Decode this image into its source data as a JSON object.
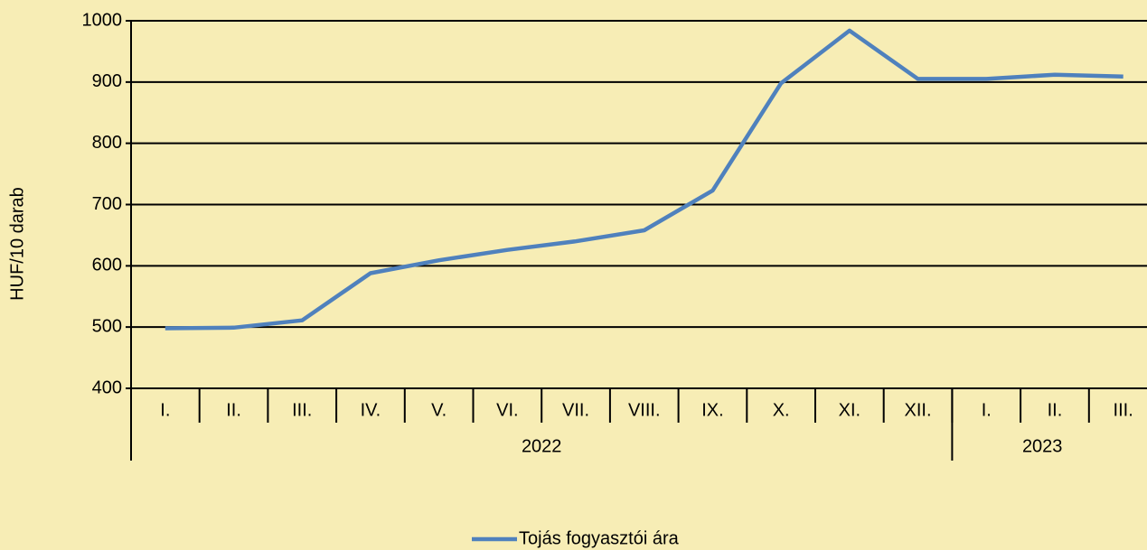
{
  "chart_data": {
    "type": "line",
    "y_label": "HUF/10 darab",
    "categories": [
      "I.",
      "II.",
      "III.",
      "IV.",
      "V.",
      "VI.",
      "VII.",
      "VIII.",
      "IX.",
      "X.",
      "XI.",
      "XII.",
      "I.",
      "II.",
      "III."
    ],
    "category_years": [
      "2022",
      "2022",
      "2022",
      "2022",
      "2022",
      "2022",
      "2022",
      "2022",
      "2022",
      "2022",
      "2022",
      "2022",
      "2023",
      "2023",
      "2023"
    ],
    "series": [
      {
        "name": "Tojás fogyasztói ára",
        "color": "#4f81bd",
        "values": [
          498,
          499,
          511,
          588,
          609,
          626,
          640,
          658,
          723,
          898,
          984,
          905,
          905,
          912,
          909
        ]
      }
    ],
    "ylim": [
      400,
      1000
    ],
    "yticks": [
      400,
      500,
      600,
      700,
      800,
      900,
      1000
    ],
    "grid": true,
    "legend": "bottom"
  }
}
